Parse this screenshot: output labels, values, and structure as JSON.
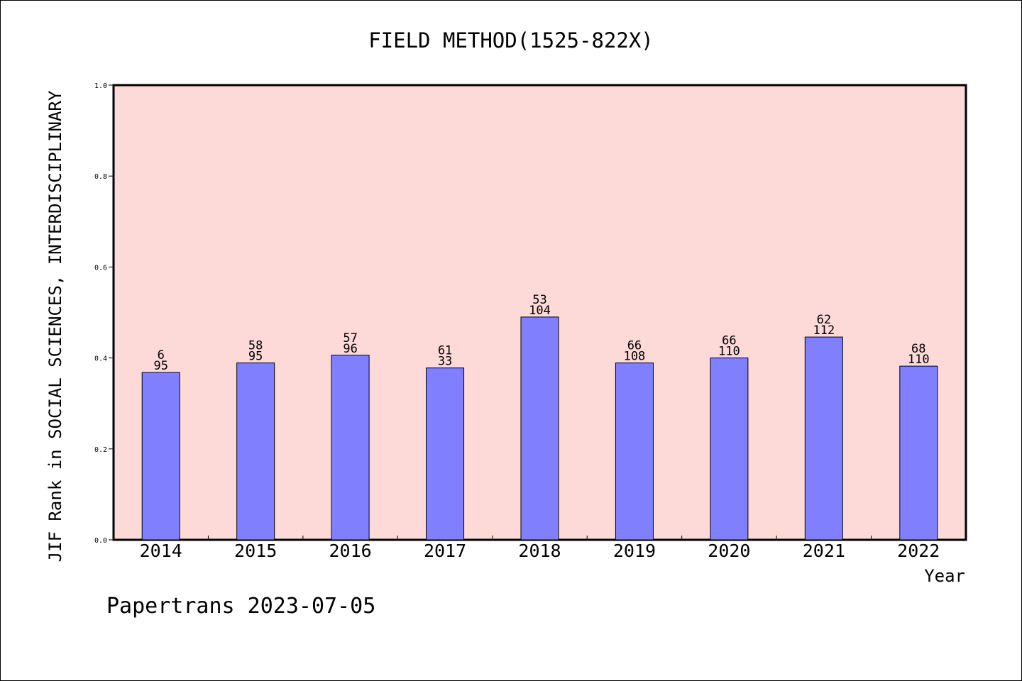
{
  "chart_data": {
    "type": "bar",
    "title": "FIELD METHOD(1525-822X)",
    "xlabel": "Year",
    "ylabel": "JIF Rank in SOCIAL SCIENCES, INTERDISCIPLINARY",
    "categories": [
      "2014",
      "2015",
      "2016",
      "2017",
      "2018",
      "2019",
      "2020",
      "2021",
      "2022"
    ],
    "values": [
      0.368,
      0.389,
      0.406,
      0.378,
      0.49,
      0.389,
      0.4,
      0.446,
      0.382
    ],
    "rank_labels": [
      "6",
      "58",
      "57",
      "61",
      "53",
      "66",
      "66",
      "62",
      "68"
    ],
    "total_labels": [
      "95",
      "95",
      "96",
      "33",
      "104",
      "108",
      "110",
      "112",
      "110"
    ],
    "ylim": [
      0,
      1.0
    ],
    "yticks": [
      "0.0",
      "0.2",
      "0.4",
      "0.6",
      "0.8",
      "1.0"
    ],
    "grid": false,
    "colors": {
      "plot_background": "#fdd9d7",
      "bar_fill": "#8080ff",
      "bar_stroke": "#000000"
    }
  },
  "footer": {
    "credit": "Papertrans 2023-07-05"
  }
}
